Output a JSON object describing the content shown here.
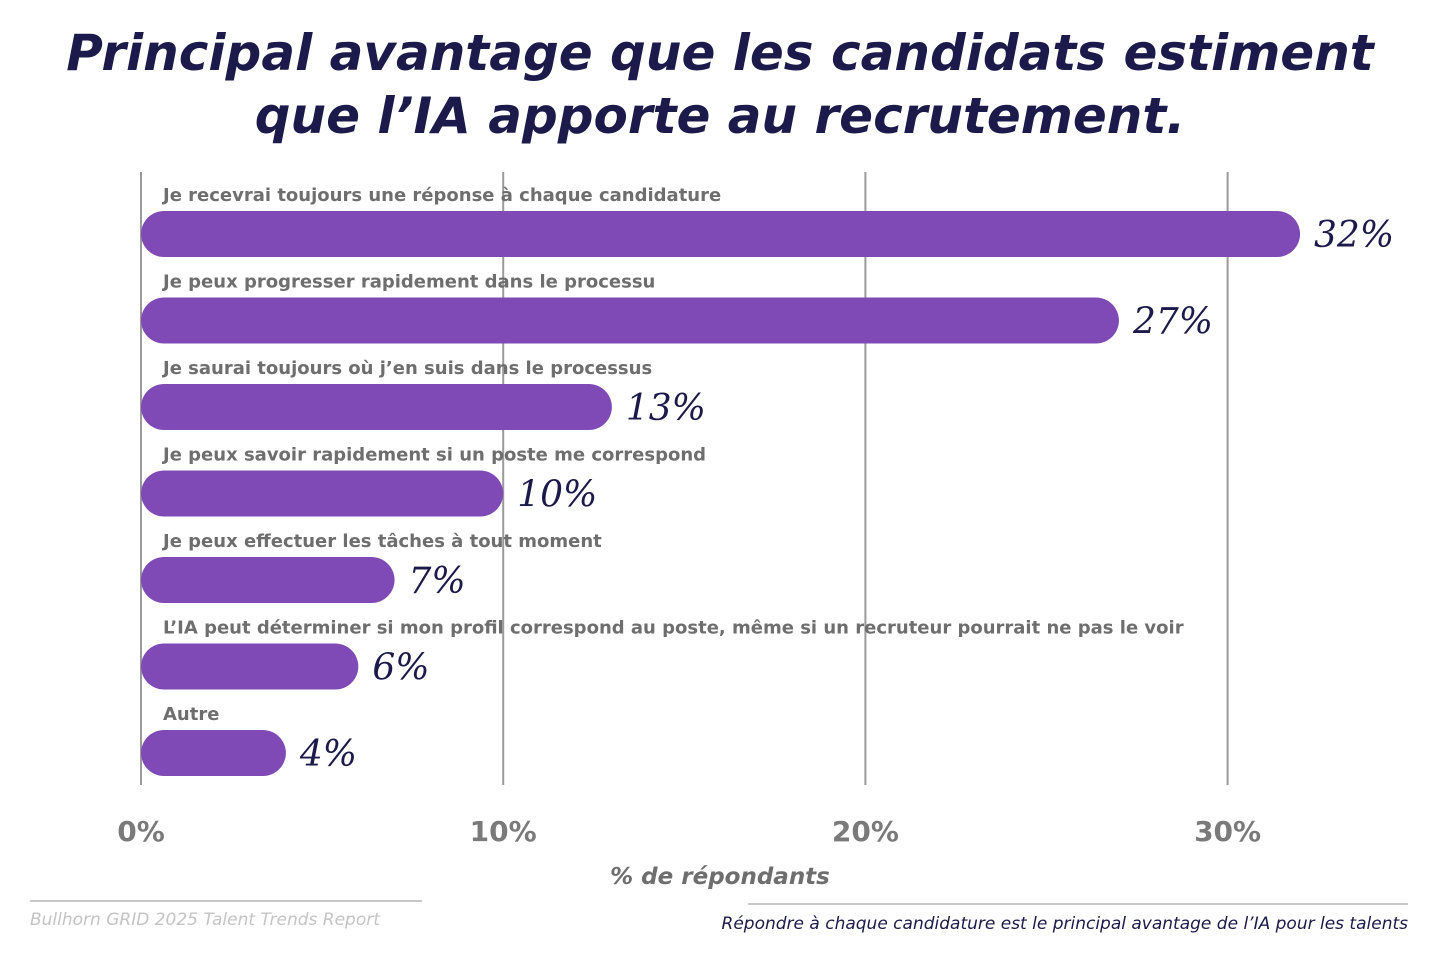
{
  "colors": {
    "bar": "#7f4ab5",
    "title": "#1b1a4a",
    "grid": "#9a9a9a",
    "label": "#6e6e6e"
  },
  "chart_data": {
    "type": "bar",
    "orientation": "horizontal",
    "title": "Principal avantage que les candidats estiment que l’IA apporte au recrutement.",
    "xlabel": "% de répondants",
    "ylabel": "",
    "xlim": [
      0,
      35
    ],
    "grid": true,
    "xticks": [
      0,
      10,
      20,
      30
    ],
    "xtick_labels": [
      "0%",
      "10%",
      "20%",
      "30%"
    ],
    "categories": [
      "Je recevrai toujours une réponse à chaque candidature",
      "Je peux progresser rapidement dans le processu",
      "Je saurai toujours où j’en suis dans le processus",
      "Je peux savoir rapidement si un poste me correspond",
      "Je peux effectuer les tâches à tout moment",
      "L’IA peut déterminer si mon profil correspond au poste, même si un recruteur pourrait ne pas le voir",
      "Autre"
    ],
    "values": [
      32,
      27,
      13,
      10,
      7,
      6,
      4
    ],
    "data_labels": [
      "32%",
      "27%",
      "13%",
      "10%",
      "7%",
      "6%",
      "4%"
    ]
  },
  "footer": {
    "source": "Bullhorn GRID 2025 Talent Trends Report",
    "takeaway": "Répondre à chaque candidature est le principal avantage de l’IA pour les talents"
  }
}
